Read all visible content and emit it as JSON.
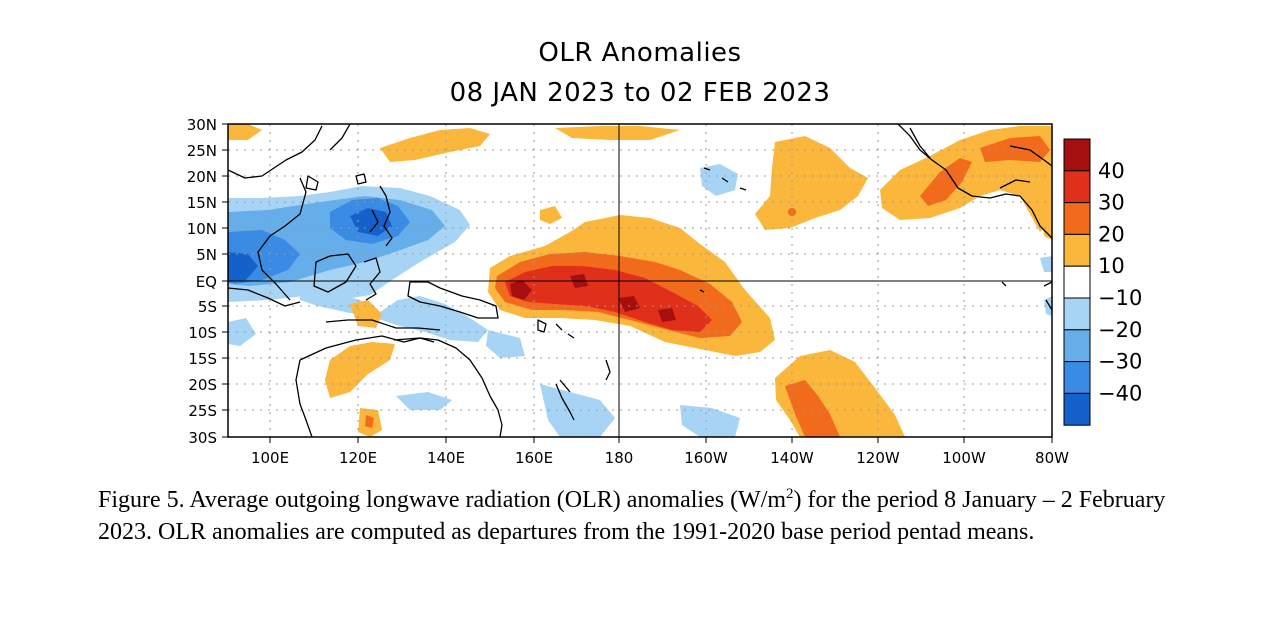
{
  "title": "OLR Anomalies",
  "subtitle": "08 JAN 2023 to 02 FEB 2023",
  "lat_labels": [
    "30N",
    "25N",
    "20N",
    "15N",
    "10N",
    "5N",
    "EQ",
    "5S",
    "10S",
    "15S",
    "20S",
    "25S",
    "30S"
  ],
  "lon_labels": [
    "100E",
    "120E",
    "140E",
    "160E",
    "180",
    "160W",
    "140W",
    "120W",
    "100W",
    "80W"
  ],
  "legend": {
    "labels": [
      "40",
      "30",
      "20",
      "10",
      "−10",
      "−20",
      "−30",
      "−40"
    ],
    "colors": [
      "#a50f0f",
      "#e0301a",
      "#f26a1b",
      "#fbb63c",
      "#ffffff",
      "#a7d4f4",
      "#66aeea",
      "#3a8be4",
      "#1561cc"
    ]
  },
  "caption": {
    "part1": "Figure 5. Average outgoing longwave radiation (OLR) anomalies (W/m",
    "sup": "2",
    "part2": ") for the period 8 January – 2 February 2023.  OLR anomalies are computed as departures from the 1991-2020 base period pentad means."
  }
}
